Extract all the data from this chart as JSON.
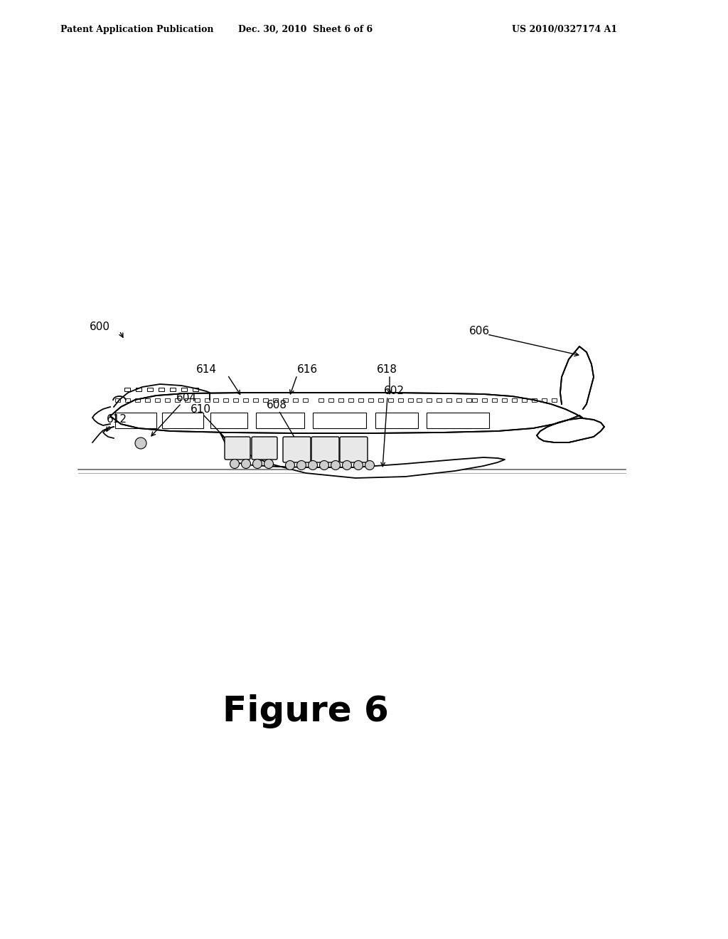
{
  "background_color": "#ffffff",
  "header_left": "Patent Application Publication",
  "header_center": "Dec. 30, 2010  Sheet 6 of 6",
  "header_right": "US 2010/0327174 A1",
  "header_fontsize": 9,
  "figure_label": "Figure 6",
  "figure_label_fontsize": 36,
  "label_fontsize": 11
}
